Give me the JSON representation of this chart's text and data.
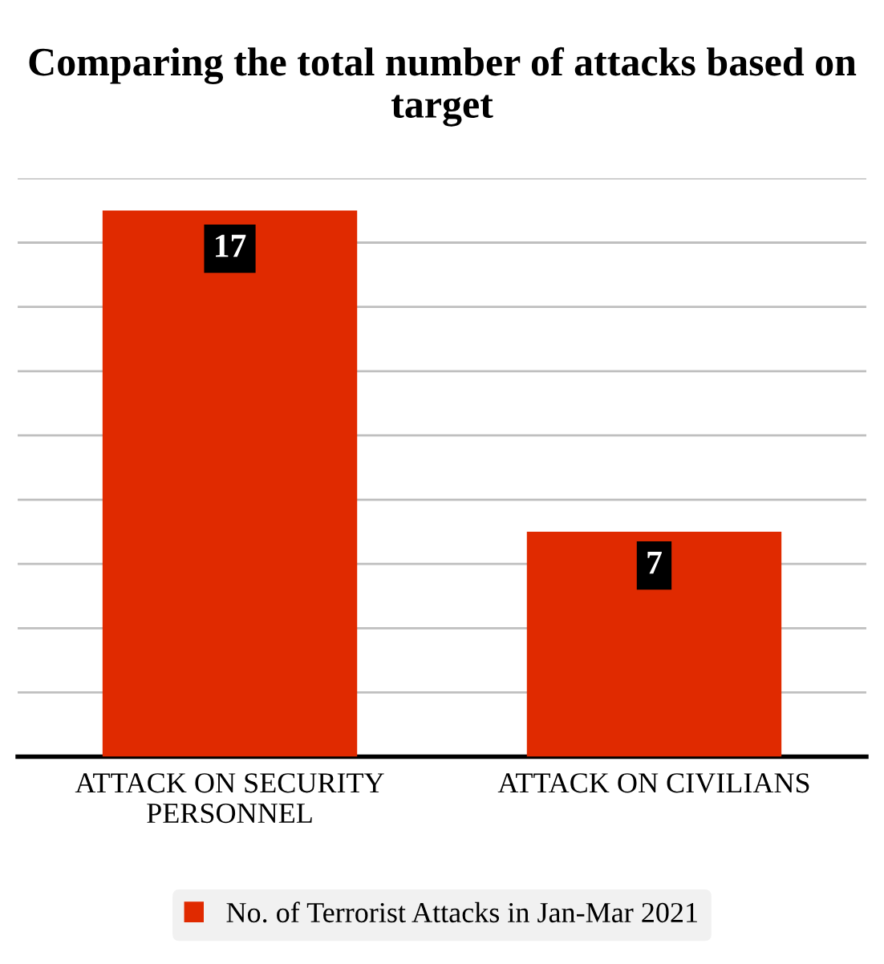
{
  "chart_data": {
    "type": "bar",
    "title": "Comparing the total number of attacks based on target",
    "categories": [
      "ATTACK ON SECURITY PERSONNEL",
      "ATTACK ON CIVILIANS"
    ],
    "series": [
      {
        "name": "No. of Terrorist Attacks in Jan-Mar 2021",
        "color": "#e02a00",
        "values": [
          17,
          7
        ]
      }
    ],
    "data_labels": true,
    "ylim": [
      0,
      18
    ],
    "yticks": [
      {
        "value": 0,
        "label": null
      },
      {
        "value": 2,
        "label": null
      },
      {
        "value": 4,
        "label": null
      },
      {
        "value": 6,
        "label": null
      },
      {
        "value": 8,
        "label": null
      },
      {
        "value": 10,
        "label": null
      },
      {
        "value": 12,
        "label": null
      },
      {
        "value": 14,
        "label": null
      },
      {
        "value": 16,
        "label": null
      },
      {
        "value": 18,
        "label": null
      }
    ],
    "grid": "y",
    "legend": "bottom",
    "tick_labels": "x"
  }
}
